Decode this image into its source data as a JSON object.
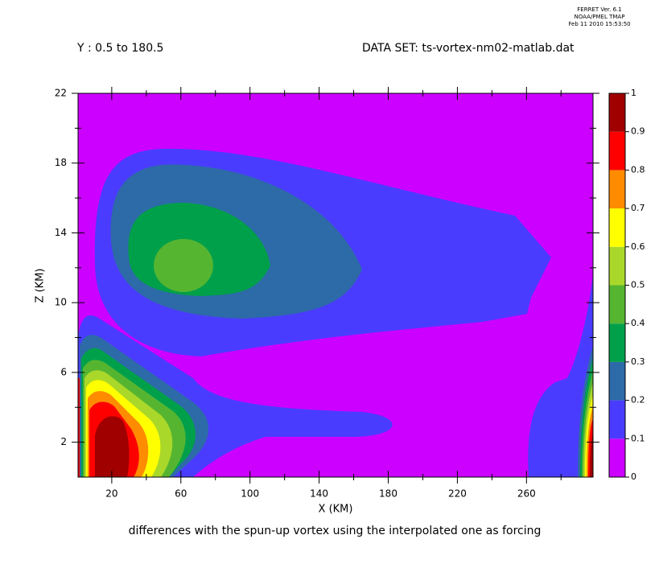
{
  "chart_data": {
    "type": "contour",
    "header": [
      "FERRET Ver. 6.1",
      "NOAA/PMEL TMAP",
      "Feb 11 2010 15:53:50"
    ],
    "subtitle_left": "Y : 0.5 to 180.5",
    "subtitle_right": "DATA SET: ts-vortex-nm02-matlab.dat",
    "title": "differences with the spun-up vortex using the interpolated one as forcing",
    "xlabel": "X (KM)",
    "ylabel": "Z (KM)",
    "xlim": [
      0.5,
      298.5
    ],
    "ylim": [
      0,
      22
    ],
    "xticks": [
      20,
      60,
      100,
      140,
      180,
      220,
      260
    ],
    "yticks": [
      2,
      6,
      10,
      14,
      18,
      22
    ],
    "x_minor_ticks": [
      40,
      80,
      120,
      160,
      200,
      240,
      280
    ],
    "y_minor_ticks": [
      4,
      8,
      12,
      16,
      20
    ],
    "levels": [
      0,
      0.1,
      0.2,
      0.3,
      0.4,
      0.5,
      0.6,
      0.7,
      0.8,
      0.9,
      1
    ],
    "colors": [
      "#cc00ff",
      "#4a3cff",
      "#2d6aa8",
      "#00a04b",
      "#55b531",
      "#aad82a",
      "#ffff00",
      "#ff8c00",
      "#ff0000",
      "#a00000"
    ]
  }
}
